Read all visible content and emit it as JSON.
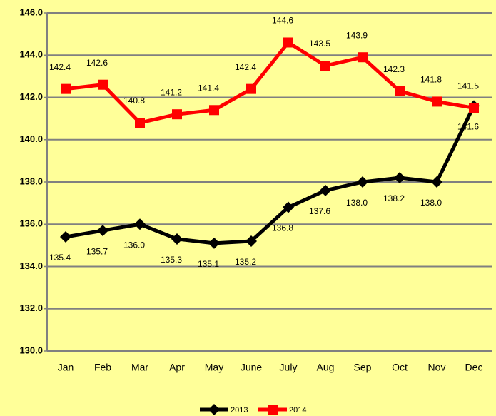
{
  "chart_data": {
    "type": "line",
    "categories": [
      "Jan",
      "Feb",
      "Mar",
      "Apr",
      "May",
      "June",
      "July",
      "Aug",
      "Sep",
      "Oct",
      "Nov",
      "Dec"
    ],
    "series": [
      {
        "name": "2013",
        "color": "#000000",
        "marker": "diamond",
        "values": [
          135.4,
          135.7,
          136.0,
          135.3,
          135.1,
          135.2,
          136.8,
          137.6,
          138.0,
          138.2,
          138.0,
          141.6
        ],
        "value_labels": [
          "135.4",
          "135.7",
          "136.0",
          "135.3",
          "135.1",
          "135.2",
          "136.8",
          "137.6",
          "138.0",
          "138.2",
          "138.0",
          "141.6"
        ],
        "label_position": "below"
      },
      {
        "name": "2014",
        "color": "#ff0000",
        "marker": "square",
        "values": [
          142.4,
          142.6,
          140.8,
          141.2,
          141.4,
          142.4,
          144.6,
          143.5,
          143.9,
          142.3,
          141.8,
          141.5
        ],
        "value_labels": [
          "142.4",
          "142.6",
          "140.8",
          "141.2",
          "141.4",
          "142.4",
          "144.6",
          "143.5",
          "143.9",
          "142.3",
          "141.8",
          "141.5"
        ],
        "label_position": "above"
      }
    ],
    "ylim": [
      130,
      146
    ],
    "yticks": [
      {
        "value": 130,
        "label": "130.0"
      },
      {
        "value": 132,
        "label": "132.0"
      },
      {
        "value": 134,
        "label": "134.0"
      },
      {
        "value": 136,
        "label": "136.0"
      },
      {
        "value": 138,
        "label": "138.0"
      },
      {
        "value": 140,
        "label": "140.0"
      },
      {
        "value": 142,
        "label": "142.0"
      },
      {
        "value": 144,
        "label": "144.0"
      },
      {
        "value": 146,
        "label": "146.0"
      }
    ],
    "grid": true,
    "legend": "bottom"
  }
}
